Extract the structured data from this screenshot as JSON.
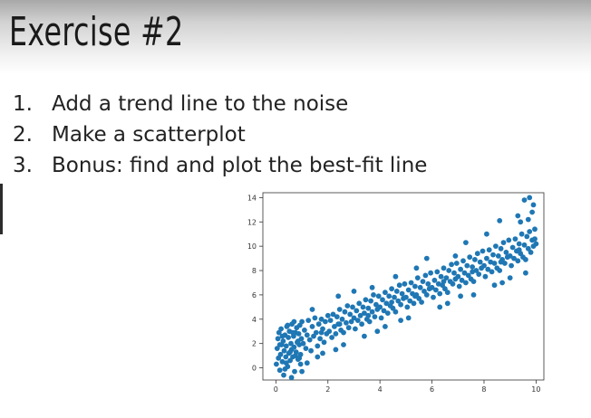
{
  "slide": {
    "title": "Exercise #2",
    "tasks": [
      {
        "number": "1.",
        "text": "Add a trend line to the noise"
      },
      {
        "number": "2.",
        "text": "Make a scatterplot"
      },
      {
        "number": "3.",
        "text": "Bonus: find and plot the best-fit line"
      }
    ]
  },
  "colors": {
    "point": "#1f77b4",
    "axis": "#333333"
  },
  "chart_data": {
    "type": "scatter",
    "title": "",
    "xlabel": "",
    "ylabel": "",
    "xlim": [
      -0.5,
      10.3
    ],
    "ylim": [
      -1,
      14.4
    ],
    "x_ticks": [
      0,
      2,
      4,
      6,
      8,
      10
    ],
    "y_ticks": [
      0,
      2,
      4,
      6,
      8,
      10,
      12,
      14
    ],
    "grid": false,
    "legend": "none",
    "series": [
      {
        "points": [
          [
            0.02,
            0.3
          ],
          [
            0.05,
            1.6
          ],
          [
            0.08,
            2.4
          ],
          [
            0.1,
            0.8
          ],
          [
            0.12,
            2.9
          ],
          [
            0.15,
            -0.2
          ],
          [
            0.18,
            1.1
          ],
          [
            0.2,
            3.2
          ],
          [
            0.22,
            1.9
          ],
          [
            0.25,
            0.5
          ],
          [
            0.28,
            2.2
          ],
          [
            0.3,
            -0.6
          ],
          [
            0.32,
            1.4
          ],
          [
            0.35,
            2.7
          ],
          [
            0.38,
            0.9
          ],
          [
            0.4,
            1.8
          ],
          [
            0.42,
            3.4
          ],
          [
            0.45,
            0.1
          ],
          [
            0.48,
            2.5
          ],
          [
            0.5,
            1.2
          ],
          [
            0.52,
            3.0
          ],
          [
            0.55,
            0.6
          ],
          [
            0.58,
            2.0
          ],
          [
            0.6,
            1.5
          ],
          [
            0.62,
            3.6
          ],
          [
            0.65,
            0.9
          ],
          [
            0.68,
            2.6
          ],
          [
            0.7,
            1.7
          ],
          [
            0.72,
            -0.3
          ],
          [
            0.75,
            2.9
          ],
          [
            0.78,
            1.3
          ],
          [
            0.8,
            3.3
          ],
          [
            0.82,
            2.1
          ],
          [
            0.85,
            0.7
          ],
          [
            0.88,
            2.8
          ],
          [
            0.9,
            1.9
          ],
          [
            0.92,
            3.5
          ],
          [
            0.95,
            1.1
          ],
          [
            0.98,
            2.4
          ],
          [
            1.0,
            3.8
          ],
          [
            1.05,
            2.0
          ],
          [
            1.1,
            3.1
          ],
          [
            1.15,
            1.6
          ],
          [
            1.2,
            2.7
          ],
          [
            1.25,
            3.9
          ],
          [
            1.3,
            2.3
          ],
          [
            1.35,
            1.4
          ],
          [
            1.4,
            3.4
          ],
          [
            1.45,
            2.6
          ],
          [
            1.5,
            4.1
          ],
          [
            1.55,
            2.9
          ],
          [
            1.6,
            1.8
          ],
          [
            1.65,
            3.6
          ],
          [
            1.7,
            2.4
          ],
          [
            1.75,
            4.0
          ],
          [
            1.8,
            3.2
          ],
          [
            1.85,
            2.1
          ],
          [
            1.9,
            3.8
          ],
          [
            1.95,
            2.8
          ],
          [
            2.0,
            4.3
          ],
          [
            2.05,
            3.0
          ],
          [
            2.1,
            3.9
          ],
          [
            2.15,
            2.5
          ],
          [
            2.2,
            4.4
          ],
          [
            2.25,
            3.4
          ],
          [
            2.3,
            2.8
          ],
          [
            2.35,
            4.2
          ],
          [
            2.4,
            3.6
          ],
          [
            2.45,
            4.8
          ],
          [
            2.5,
            3.1
          ],
          [
            2.55,
            4.0
          ],
          [
            2.6,
            2.9
          ],
          [
            2.65,
            4.6
          ],
          [
            2.7,
            3.7
          ],
          [
            2.75,
            5.1
          ],
          [
            2.8,
            3.3
          ],
          [
            2.85,
            4.4
          ],
          [
            2.9,
            3.8
          ],
          [
            2.95,
            5.0
          ],
          [
            3.0,
            4.1
          ],
          [
            3.05,
            3.2
          ],
          [
            3.1,
            4.7
          ],
          [
            3.15,
            3.9
          ],
          [
            3.2,
            5.3
          ],
          [
            3.25,
            4.3
          ],
          [
            3.3,
            3.6
          ],
          [
            3.35,
            5.0
          ],
          [
            3.4,
            4.5
          ],
          [
            3.45,
            5.6
          ],
          [
            3.5,
            4.0
          ],
          [
            3.55,
            4.9
          ],
          [
            3.6,
            3.8
          ],
          [
            3.65,
            5.5
          ],
          [
            3.7,
            4.6
          ],
          [
            3.75,
            6.0
          ],
          [
            3.8,
            4.2
          ],
          [
            3.85,
            5.2
          ],
          [
            3.9,
            4.8
          ],
          [
            3.95,
            5.9
          ],
          [
            4.0,
            5.0
          ],
          [
            4.05,
            4.1
          ],
          [
            4.1,
            5.6
          ],
          [
            4.15,
            4.7
          ],
          [
            4.2,
            6.2
          ],
          [
            4.25,
            5.3
          ],
          [
            4.3,
            4.5
          ],
          [
            4.35,
            5.9
          ],
          [
            4.4,
            5.1
          ],
          [
            4.45,
            6.5
          ],
          [
            4.5,
            4.9
          ],
          [
            4.55,
            5.8
          ],
          [
            4.6,
            4.6
          ],
          [
            4.65,
            6.3
          ],
          [
            4.7,
            5.5
          ],
          [
            4.75,
            6.8
          ],
          [
            4.8,
            5.2
          ],
          [
            4.85,
            6.1
          ],
          [
            4.9,
            5.7
          ],
          [
            4.95,
            6.9
          ],
          [
            5.0,
            5.8
          ],
          [
            5.05,
            5.0
          ],
          [
            5.1,
            6.4
          ],
          [
            5.15,
            5.5
          ],
          [
            5.2,
            7.0
          ],
          [
            5.25,
            6.1
          ],
          [
            5.3,
            5.3
          ],
          [
            5.35,
            6.7
          ],
          [
            5.4,
            6.0
          ],
          [
            5.45,
            7.4
          ],
          [
            5.5,
            5.7
          ],
          [
            5.55,
            6.6
          ],
          [
            5.6,
            5.4
          ],
          [
            5.65,
            7.1
          ],
          [
            5.7,
            6.3
          ],
          [
            5.75,
            7.6
          ],
          [
            5.8,
            6.0
          ],
          [
            5.85,
            6.9
          ],
          [
            5.9,
            6.5
          ],
          [
            5.95,
            7.8
          ],
          [
            6.0,
            6.6
          ],
          [
            6.05,
            5.8
          ],
          [
            6.1,
            7.2
          ],
          [
            6.15,
            6.4
          ],
          [
            6.2,
            7.9
          ],
          [
            6.25,
            6.9
          ],
          [
            6.3,
            6.1
          ],
          [
            6.35,
            7.5
          ],
          [
            6.4,
            6.8
          ],
          [
            6.45,
            8.2
          ],
          [
            6.5,
            6.5
          ],
          [
            6.55,
            7.4
          ],
          [
            6.6,
            6.2
          ],
          [
            6.65,
            8.0
          ],
          [
            6.7,
            7.1
          ],
          [
            6.75,
            8.5
          ],
          [
            6.8,
            6.9
          ],
          [
            6.85,
            7.8
          ],
          [
            6.9,
            7.3
          ],
          [
            6.95,
            8.6
          ],
          [
            7.0,
            7.5
          ],
          [
            7.05,
            6.7
          ],
          [
            7.1,
            8.1
          ],
          [
            7.15,
            7.2
          ],
          [
            7.2,
            8.8
          ],
          [
            7.25,
            7.8
          ],
          [
            7.3,
            7.0
          ],
          [
            7.35,
            8.4
          ],
          [
            7.4,
            7.6
          ],
          [
            7.45,
            9.1
          ],
          [
            7.5,
            7.3
          ],
          [
            7.55,
            8.3
          ],
          [
            7.6,
            7.1
          ],
          [
            7.65,
            8.9
          ],
          [
            7.7,
            8.0
          ],
          [
            7.75,
            9.4
          ],
          [
            7.8,
            7.7
          ],
          [
            7.85,
            8.7
          ],
          [
            7.9,
            8.2
          ],
          [
            7.95,
            9.6
          ],
          [
            8.0,
            8.4
          ],
          [
            8.05,
            7.5
          ],
          [
            8.1,
            9.0
          ],
          [
            8.15,
            8.1
          ],
          [
            8.2,
            9.7
          ],
          [
            8.25,
            8.7
          ],
          [
            8.3,
            7.9
          ],
          [
            8.35,
            9.3
          ],
          [
            8.4,
            8.6
          ],
          [
            8.45,
            10.0
          ],
          [
            8.5,
            8.2
          ],
          [
            8.55,
            9.2
          ],
          [
            8.6,
            8.0
          ],
          [
            8.65,
            9.8
          ],
          [
            8.7,
            8.9
          ],
          [
            8.75,
            10.3
          ],
          [
            8.8,
            8.6
          ],
          [
            8.85,
            9.5
          ],
          [
            8.9,
            9.1
          ],
          [
            8.95,
            10.5
          ],
          [
            9.0,
            9.2
          ],
          [
            9.05,
            8.4
          ],
          [
            9.1,
            9.9
          ],
          [
            9.15,
            9.0
          ],
          [
            9.2,
            10.6
          ],
          [
            9.25,
            9.6
          ],
          [
            9.3,
            8.8
          ],
          [
            9.35,
            10.2
          ],
          [
            9.4,
            9.4
          ],
          [
            9.45,
            11.0
          ],
          [
            9.5,
            9.1
          ],
          [
            9.55,
            10.1
          ],
          [
            9.6,
            8.9
          ],
          [
            9.65,
            10.8
          ],
          [
            9.7,
            9.8
          ],
          [
            9.75,
            11.2
          ],
          [
            9.8,
            9.5
          ],
          [
            9.85,
            10.5
          ],
          [
            9.9,
            10.0
          ],
          [
            9.95,
            11.4
          ],
          [
            10.0,
            10.2
          ],
          [
            0.6,
            -0.8
          ],
          [
            1.2,
            0.4
          ],
          [
            1.8,
            1.2
          ],
          [
            2.6,
            1.9
          ],
          [
            3.4,
            2.6
          ],
          [
            4.2,
            3.4
          ],
          [
            5.1,
            4.1
          ],
          [
            6.3,
            5.0
          ],
          [
            7.6,
            6.0
          ],
          [
            8.7,
            7.0
          ],
          [
            9.6,
            7.8
          ],
          [
            9.4,
            12.0
          ],
          [
            9.7,
            12.2
          ],
          [
            9.85,
            12.8
          ],
          [
            9.55,
            13.8
          ],
          [
            9.75,
            14.0
          ],
          [
            9.9,
            13.4
          ],
          [
            8.6,
            12.1
          ],
          [
            7.3,
            10.3
          ],
          [
            5.8,
            9.0
          ],
          [
            4.6,
            7.5
          ],
          [
            3.7,
            6.6
          ],
          [
            2.4,
            5.9
          ],
          [
            1.4,
            4.8
          ],
          [
            0.7,
            3.8
          ],
          [
            6.9,
            9.2
          ],
          [
            8.1,
            11.0
          ],
          [
            9.3,
            12.5
          ],
          [
            5.4,
            8.2
          ],
          [
            3.0,
            6.3
          ],
          [
            1.6,
            0.9
          ],
          [
            2.3,
            1.5
          ],
          [
            3.9,
            3.0
          ],
          [
            4.8,
            3.9
          ],
          [
            6.6,
            5.3
          ],
          [
            7.1,
            5.9
          ],
          [
            8.4,
            6.8
          ],
          [
            9.0,
            7.4
          ],
          [
            0.35,
            -0.1
          ],
          [
            0.95,
            0.3
          ],
          [
            0.15,
            1.9
          ],
          [
            0.45,
            3.5
          ],
          [
            0.75,
            1.0
          ],
          [
            1.0,
            -0.3
          ],
          [
            0.25,
            2.6
          ],
          [
            0.55,
            1.3
          ],
          [
            0.85,
            2.2
          ],
          [
            0.4,
            0.4
          ],
          [
            0.65,
            2.9
          ],
          [
            0.9,
            0.8
          ],
          [
            4.45,
            5.4
          ],
          [
            5.35,
            5.9
          ],
          [
            6.45,
            7.1
          ],
          [
            7.55,
            7.9
          ],
          [
            8.65,
            8.7
          ],
          [
            9.35,
            9.7
          ],
          [
            3.55,
            4.3
          ],
          [
            2.45,
            3.6
          ],
          [
            1.75,
            2.9
          ],
          [
            9.95,
            10.6
          ]
        ]
      }
    ]
  }
}
